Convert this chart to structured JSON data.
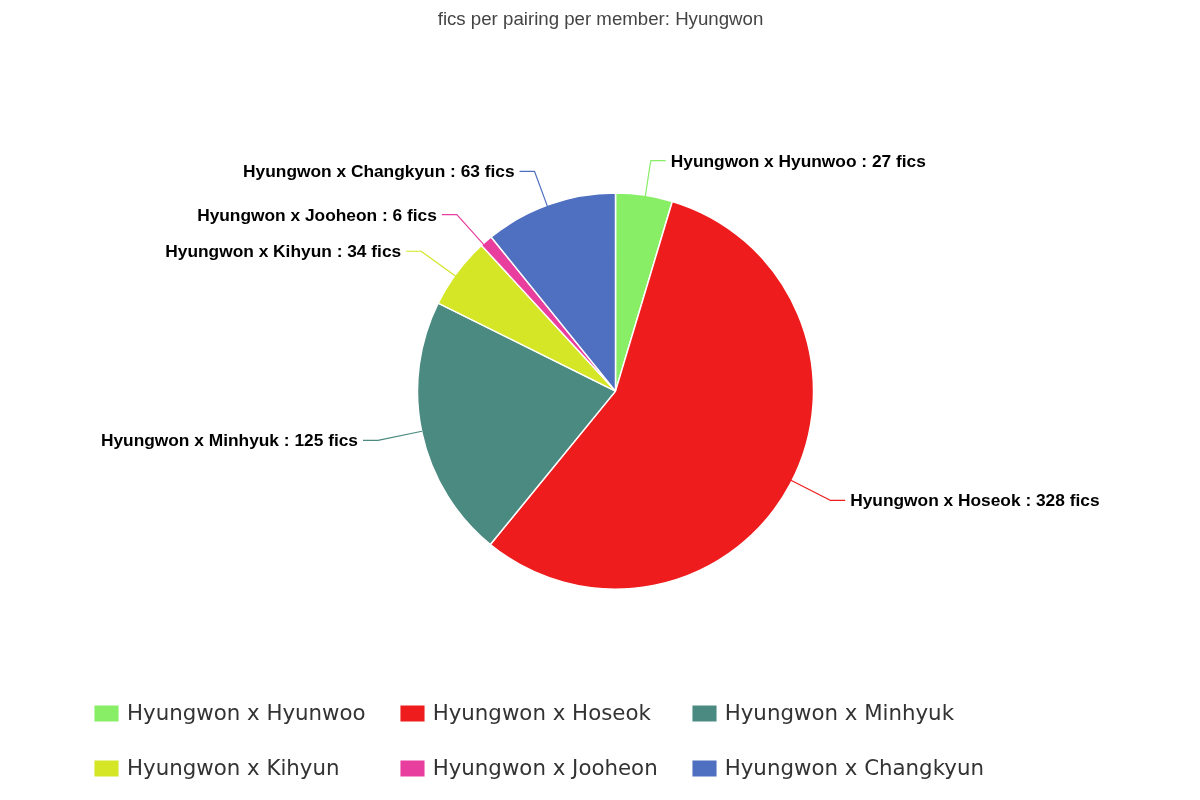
{
  "chart_data": {
    "type": "pie",
    "title": "fics per pairing per member: Hyungwon",
    "categories": [
      "Hyungwon x Hyunwoo",
      "Hyungwon x Hoseok",
      "Hyungwon x Minhyuk",
      "Hyungwon x Kihyun",
      "Hyungwon x Jooheon",
      "Hyungwon x Changkyun"
    ],
    "values": [
      27,
      328,
      125,
      34,
      6,
      63
    ],
    "colors": [
      "#88ee66",
      "#ee1c1c",
      "#4a8a80",
      "#d4e626",
      "#e83e9e",
      "#4f6fc0"
    ],
    "value_labels": [
      "Hyungwon x Hyunwoo : 27 fics",
      "Hyungwon x Hoseok : 328 fics",
      "Hyungwon x Minhyuk : 125 fics",
      "Hyungwon x Kihyun : 34 fics",
      "Hyungwon x Jooheon : 6 fics",
      "Hyungwon x Changkyun : 63 fics"
    ],
    "legend": "bottom"
  }
}
